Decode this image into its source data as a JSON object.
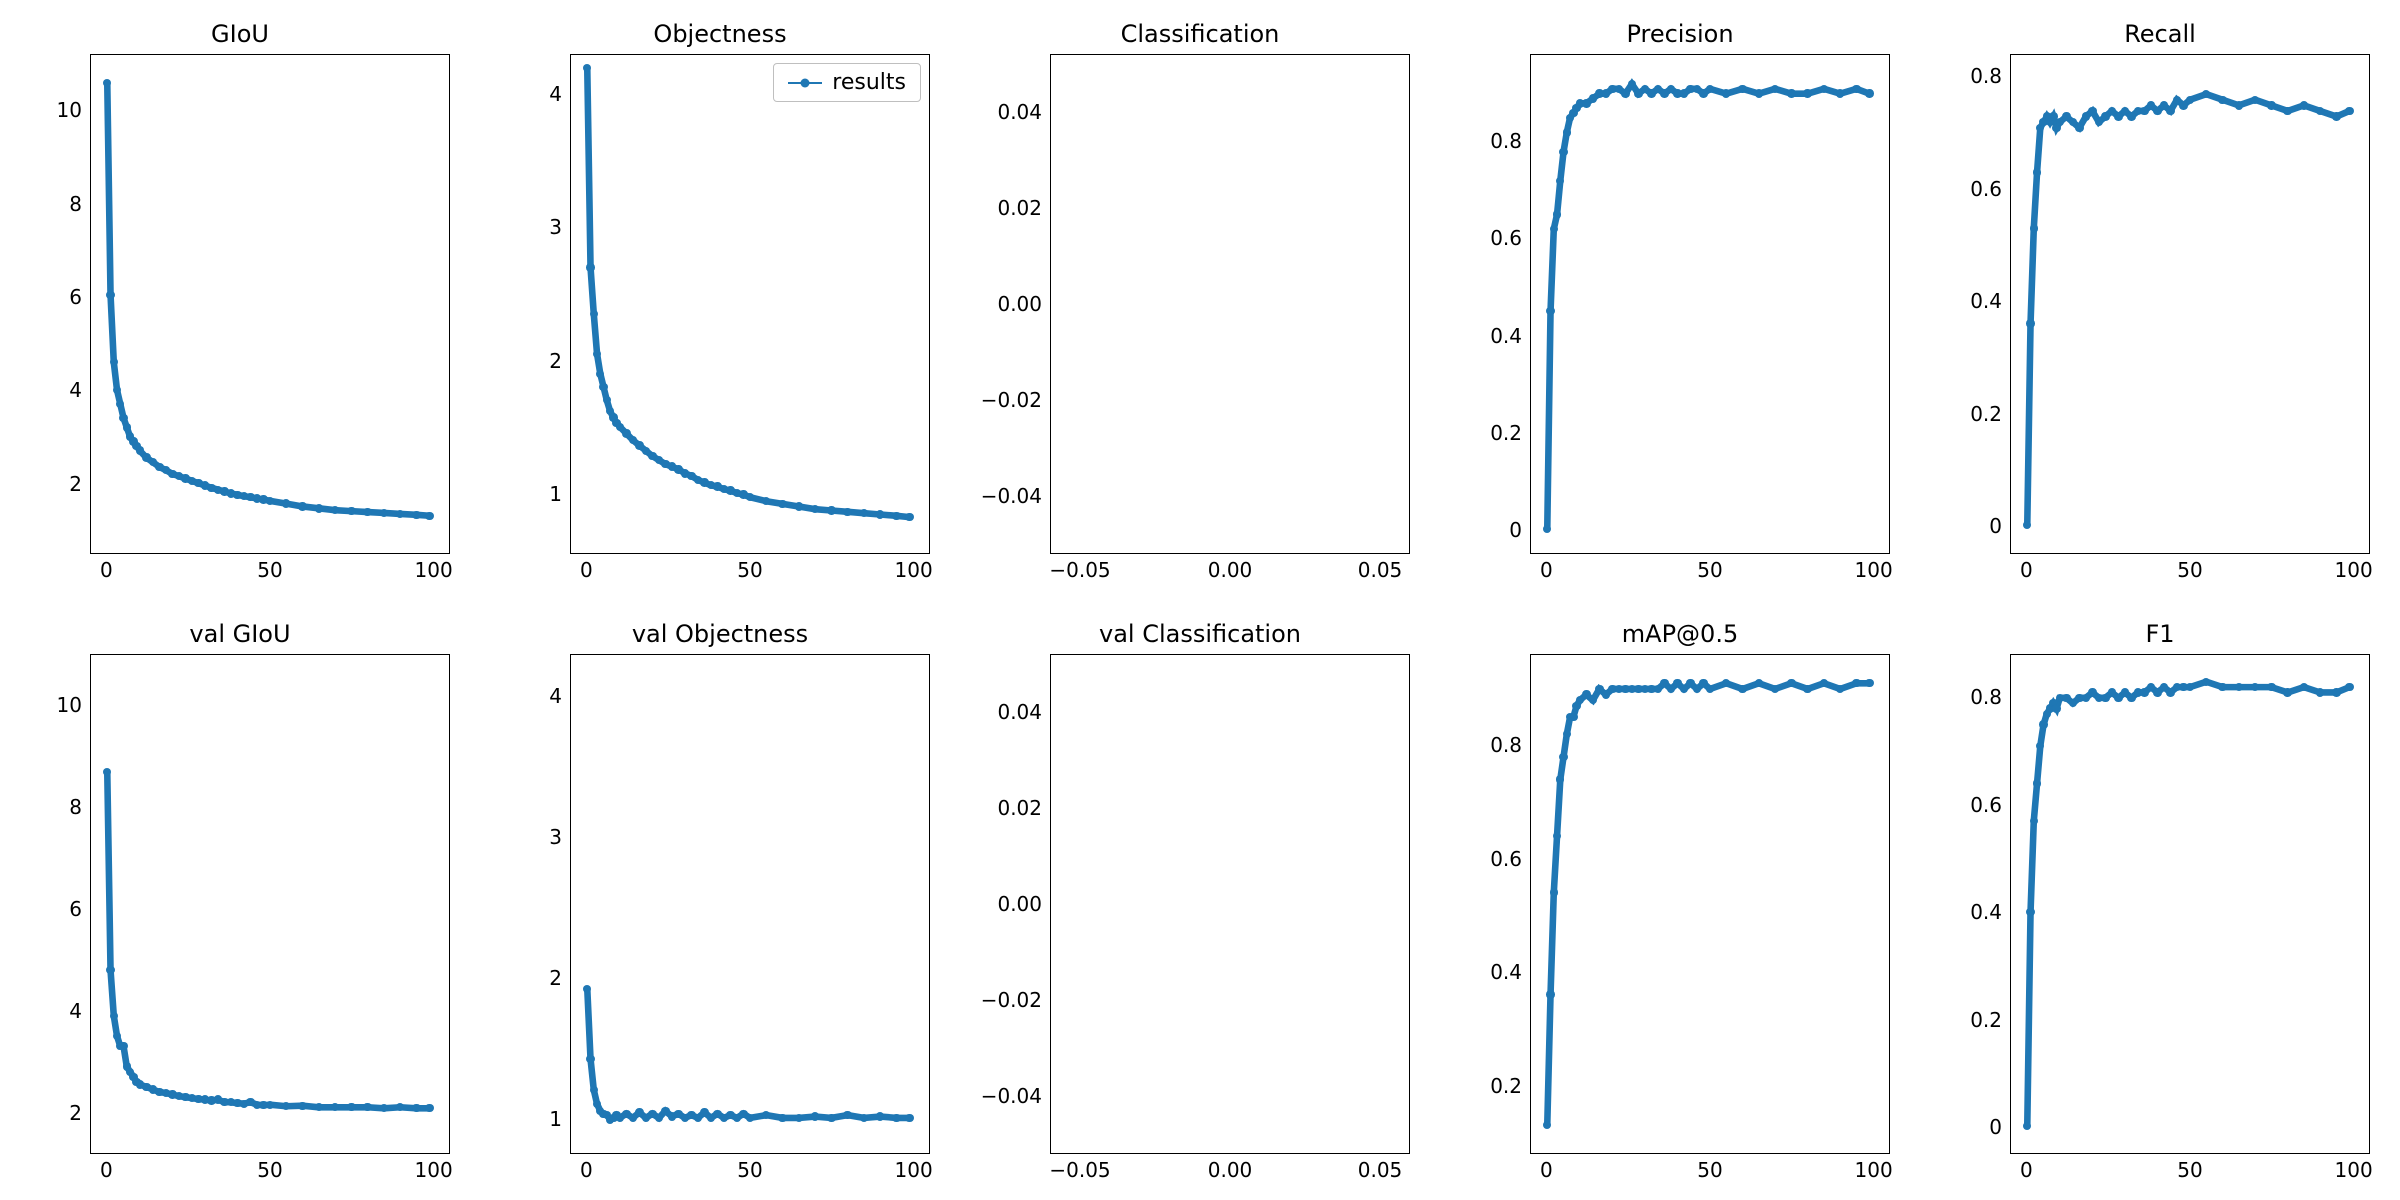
{
  "global": {
    "background_color": "#ffffff",
    "font_family": "DejaVu Sans",
    "title_fontsize": 24,
    "tick_fontsize": 20,
    "series_color": "#1f77b4",
    "axis_color": "#000000",
    "marker_radius": 4.2,
    "line_width": 2.2,
    "grid_layout": {
      "rows": 2,
      "cols": 5
    }
  },
  "legend": {
    "label": "results",
    "panel_index": 1,
    "position": "upper right"
  },
  "panels": [
    {
      "id": "giou",
      "title": "GIoU",
      "type": "line",
      "xlim": [
        -5,
        105
      ],
      "ylim": [
        0.5,
        11.2
      ],
      "xticks": [
        0,
        50,
        100
      ],
      "yticks": [
        2,
        4,
        6,
        8,
        10
      ],
      "x": [
        0,
        1,
        2,
        3,
        4,
        5,
        6,
        7,
        8,
        9,
        10,
        12,
        14,
        16,
        18,
        20,
        22,
        24,
        26,
        28,
        30,
        32,
        34,
        36,
        38,
        40,
        42,
        44,
        46,
        48,
        50,
        55,
        60,
        65,
        70,
        75,
        80,
        85,
        90,
        95,
        99
      ],
      "y": [
        10.6,
        6.05,
        4.6,
        4.0,
        3.7,
        3.4,
        3.2,
        3.0,
        2.9,
        2.8,
        2.7,
        2.55,
        2.45,
        2.35,
        2.28,
        2.2,
        2.15,
        2.1,
        2.05,
        2.0,
        1.95,
        1.9,
        1.86,
        1.82,
        1.78,
        1.75,
        1.72,
        1.7,
        1.67,
        1.65,
        1.62,
        1.56,
        1.5,
        1.46,
        1.42,
        1.4,
        1.38,
        1.36,
        1.34,
        1.32,
        1.3
      ]
    },
    {
      "id": "objectness",
      "title": "Objectness",
      "type": "line",
      "xlim": [
        -5,
        105
      ],
      "ylim": [
        0.55,
        4.3
      ],
      "xticks": [
        0,
        50,
        100
      ],
      "yticks": [
        1,
        2,
        3,
        4
      ],
      "show_legend": true,
      "x": [
        0,
        1,
        2,
        3,
        4,
        5,
        6,
        7,
        8,
        9,
        10,
        12,
        14,
        16,
        18,
        20,
        22,
        24,
        26,
        28,
        30,
        32,
        34,
        36,
        38,
        40,
        42,
        44,
        46,
        48,
        50,
        55,
        60,
        65,
        70,
        75,
        80,
        85,
        90,
        95,
        99
      ],
      "y": [
        4.2,
        2.7,
        2.35,
        2.05,
        1.9,
        1.8,
        1.7,
        1.62,
        1.57,
        1.53,
        1.5,
        1.45,
        1.4,
        1.36,
        1.32,
        1.28,
        1.25,
        1.22,
        1.2,
        1.18,
        1.15,
        1.13,
        1.1,
        1.08,
        1.06,
        1.05,
        1.03,
        1.02,
        1.0,
        0.99,
        0.97,
        0.94,
        0.92,
        0.9,
        0.88,
        0.87,
        0.86,
        0.85,
        0.84,
        0.83,
        0.82
      ]
    },
    {
      "id": "classification",
      "title": "Classification",
      "type": "line",
      "xlim": [
        -0.06,
        0.06
      ],
      "ylim": [
        -0.052,
        0.052
      ],
      "xticks": [
        -0.05,
        0.0,
        0.05
      ],
      "xtick_labels": [
        "−0.05",
        "0.00",
        "0.05"
      ],
      "yticks": [
        -0.04,
        -0.02,
        0.0,
        0.02,
        0.04
      ],
      "ytick_labels": [
        "−0.04",
        "−0.02",
        "0.00",
        "0.02",
        "0.04"
      ],
      "x": [],
      "y": []
    },
    {
      "id": "precision",
      "title": "Precision",
      "type": "line",
      "xlim": [
        -5,
        105
      ],
      "ylim": [
        -0.05,
        0.98
      ],
      "xticks": [
        0,
        50,
        100
      ],
      "yticks": [
        0.0,
        0.2,
        0.4,
        0.6,
        0.8
      ],
      "x": [
        0,
        1,
        2,
        3,
        4,
        5,
        6,
        7,
        8,
        9,
        10,
        12,
        14,
        16,
        18,
        20,
        22,
        24,
        26,
        28,
        30,
        32,
        34,
        36,
        38,
        40,
        42,
        44,
        46,
        48,
        50,
        55,
        60,
        65,
        70,
        75,
        80,
        85,
        90,
        95,
        99
      ],
      "y": [
        0.0,
        0.45,
        0.62,
        0.65,
        0.72,
        0.78,
        0.82,
        0.85,
        0.86,
        0.87,
        0.88,
        0.88,
        0.89,
        0.9,
        0.9,
        0.91,
        0.91,
        0.9,
        0.92,
        0.9,
        0.91,
        0.9,
        0.91,
        0.9,
        0.91,
        0.9,
        0.9,
        0.91,
        0.91,
        0.9,
        0.91,
        0.9,
        0.91,
        0.9,
        0.91,
        0.9,
        0.9,
        0.91,
        0.9,
        0.91,
        0.9
      ]
    },
    {
      "id": "recall",
      "title": "Recall",
      "type": "line",
      "xlim": [
        -5,
        105
      ],
      "ylim": [
        -0.05,
        0.84
      ],
      "xticks": [
        0,
        50,
        100
      ],
      "yticks": [
        0.0,
        0.2,
        0.4,
        0.6,
        0.8
      ],
      "x": [
        0,
        1,
        2,
        3,
        4,
        5,
        6,
        7,
        8,
        9,
        10,
        12,
        14,
        16,
        18,
        20,
        22,
        24,
        26,
        28,
        30,
        32,
        34,
        36,
        38,
        40,
        42,
        44,
        46,
        48,
        50,
        55,
        60,
        65,
        70,
        75,
        80,
        85,
        90,
        95,
        99
      ],
      "y": [
        0.0,
        0.36,
        0.53,
        0.63,
        0.71,
        0.72,
        0.73,
        0.72,
        0.73,
        0.71,
        0.72,
        0.73,
        0.72,
        0.71,
        0.73,
        0.74,
        0.72,
        0.73,
        0.74,
        0.73,
        0.74,
        0.73,
        0.74,
        0.74,
        0.75,
        0.74,
        0.75,
        0.74,
        0.76,
        0.75,
        0.76,
        0.77,
        0.76,
        0.75,
        0.76,
        0.75,
        0.74,
        0.75,
        0.74,
        0.73,
        0.74
      ]
    },
    {
      "id": "val_giou",
      "title": "val GIoU",
      "type": "line",
      "xlim": [
        -5,
        105
      ],
      "ylim": [
        1.2,
        11.0
      ],
      "xticks": [
        0,
        50,
        100
      ],
      "yticks": [
        2,
        4,
        6,
        8,
        10
      ],
      "x": [
        0,
        1,
        2,
        3,
        4,
        5,
        6,
        7,
        8,
        9,
        10,
        12,
        14,
        16,
        18,
        20,
        22,
        24,
        26,
        28,
        30,
        32,
        34,
        36,
        38,
        40,
        42,
        44,
        46,
        48,
        50,
        55,
        60,
        65,
        70,
        75,
        80,
        85,
        90,
        95,
        99
      ],
      "y": [
        8.7,
        4.8,
        3.9,
        3.5,
        3.3,
        3.3,
        2.9,
        2.8,
        2.7,
        2.6,
        2.55,
        2.5,
        2.45,
        2.4,
        2.38,
        2.35,
        2.32,
        2.3,
        2.28,
        2.26,
        2.25,
        2.23,
        2.25,
        2.2,
        2.2,
        2.18,
        2.17,
        2.2,
        2.15,
        2.14,
        2.15,
        2.12,
        2.13,
        2.1,
        2.1,
        2.1,
        2.1,
        2.08,
        2.1,
        2.08,
        2.08
      ]
    },
    {
      "id": "val_objectness",
      "title": "val Objectness",
      "type": "line",
      "xlim": [
        -5,
        105
      ],
      "ylim": [
        0.75,
        4.3
      ],
      "xticks": [
        0,
        50,
        100
      ],
      "yticks": [
        1,
        2,
        3,
        4
      ],
      "x": [
        0,
        1,
        2,
        3,
        4,
        5,
        6,
        7,
        8,
        9,
        10,
        12,
        14,
        16,
        18,
        20,
        22,
        24,
        26,
        28,
        30,
        32,
        34,
        36,
        38,
        40,
        42,
        44,
        46,
        48,
        50,
        55,
        60,
        65,
        70,
        75,
        80,
        85,
        90,
        95,
        99
      ],
      "y": [
        1.92,
        1.42,
        1.2,
        1.1,
        1.05,
        1.03,
        1.02,
        0.99,
        1.0,
        1.02,
        1.0,
        1.03,
        1.0,
        1.04,
        1.0,
        1.03,
        1.0,
        1.05,
        1.01,
        1.03,
        1.0,
        1.02,
        1.0,
        1.04,
        1.0,
        1.03,
        1.0,
        1.02,
        1.0,
        1.03,
        1.0,
        1.02,
        1.0,
        1.0,
        1.01,
        1.0,
        1.02,
        1.0,
        1.01,
        1.0,
        1.0
      ]
    },
    {
      "id": "val_classification",
      "title": "val Classification",
      "type": "line",
      "xlim": [
        -0.06,
        0.06
      ],
      "ylim": [
        -0.052,
        0.052
      ],
      "xticks": [
        -0.05,
        0.0,
        0.05
      ],
      "xtick_labels": [
        "−0.05",
        "0.00",
        "0.05"
      ],
      "yticks": [
        -0.04,
        -0.02,
        0.0,
        0.02,
        0.04
      ],
      "ytick_labels": [
        "−0.04",
        "−0.02",
        "0.00",
        "0.02",
        "0.04"
      ],
      "x": [],
      "y": []
    },
    {
      "id": "map05",
      "title": "mAP@0.5",
      "type": "line",
      "xlim": [
        -5,
        105
      ],
      "ylim": [
        0.08,
        0.96
      ],
      "xticks": [
        0,
        50,
        100
      ],
      "yticks": [
        0.2,
        0.4,
        0.6,
        0.8
      ],
      "x": [
        0,
        1,
        2,
        3,
        4,
        5,
        6,
        7,
        8,
        9,
        10,
        12,
        14,
        16,
        18,
        20,
        22,
        24,
        26,
        28,
        30,
        32,
        34,
        36,
        38,
        40,
        42,
        44,
        46,
        48,
        50,
        55,
        60,
        65,
        70,
        75,
        80,
        85,
        90,
        95,
        99
      ],
      "y": [
        0.13,
        0.36,
        0.54,
        0.64,
        0.74,
        0.78,
        0.82,
        0.85,
        0.85,
        0.87,
        0.88,
        0.89,
        0.88,
        0.9,
        0.89,
        0.9,
        0.9,
        0.9,
        0.9,
        0.9,
        0.9,
        0.9,
        0.9,
        0.91,
        0.9,
        0.91,
        0.9,
        0.91,
        0.9,
        0.91,
        0.9,
        0.91,
        0.9,
        0.91,
        0.9,
        0.91,
        0.9,
        0.91,
        0.9,
        0.91,
        0.91
      ]
    },
    {
      "id": "f1",
      "title": "F1",
      "type": "line",
      "xlim": [
        -5,
        105
      ],
      "ylim": [
        -0.05,
        0.88
      ],
      "xticks": [
        0,
        50,
        100
      ],
      "yticks": [
        0.0,
        0.2,
        0.4,
        0.6,
        0.8
      ],
      "x": [
        0,
        1,
        2,
        3,
        4,
        5,
        6,
        7,
        8,
        9,
        10,
        12,
        14,
        16,
        18,
        20,
        22,
        24,
        26,
        28,
        30,
        32,
        34,
        36,
        38,
        40,
        42,
        44,
        46,
        48,
        50,
        55,
        60,
        65,
        70,
        75,
        80,
        85,
        90,
        95,
        99
      ],
      "y": [
        0.0,
        0.4,
        0.57,
        0.64,
        0.71,
        0.75,
        0.77,
        0.78,
        0.79,
        0.78,
        0.8,
        0.8,
        0.79,
        0.8,
        0.8,
        0.81,
        0.8,
        0.8,
        0.81,
        0.8,
        0.81,
        0.8,
        0.81,
        0.81,
        0.82,
        0.81,
        0.82,
        0.81,
        0.82,
        0.82,
        0.82,
        0.83,
        0.82,
        0.82,
        0.82,
        0.82,
        0.81,
        0.82,
        0.81,
        0.81,
        0.82
      ]
    }
  ]
}
